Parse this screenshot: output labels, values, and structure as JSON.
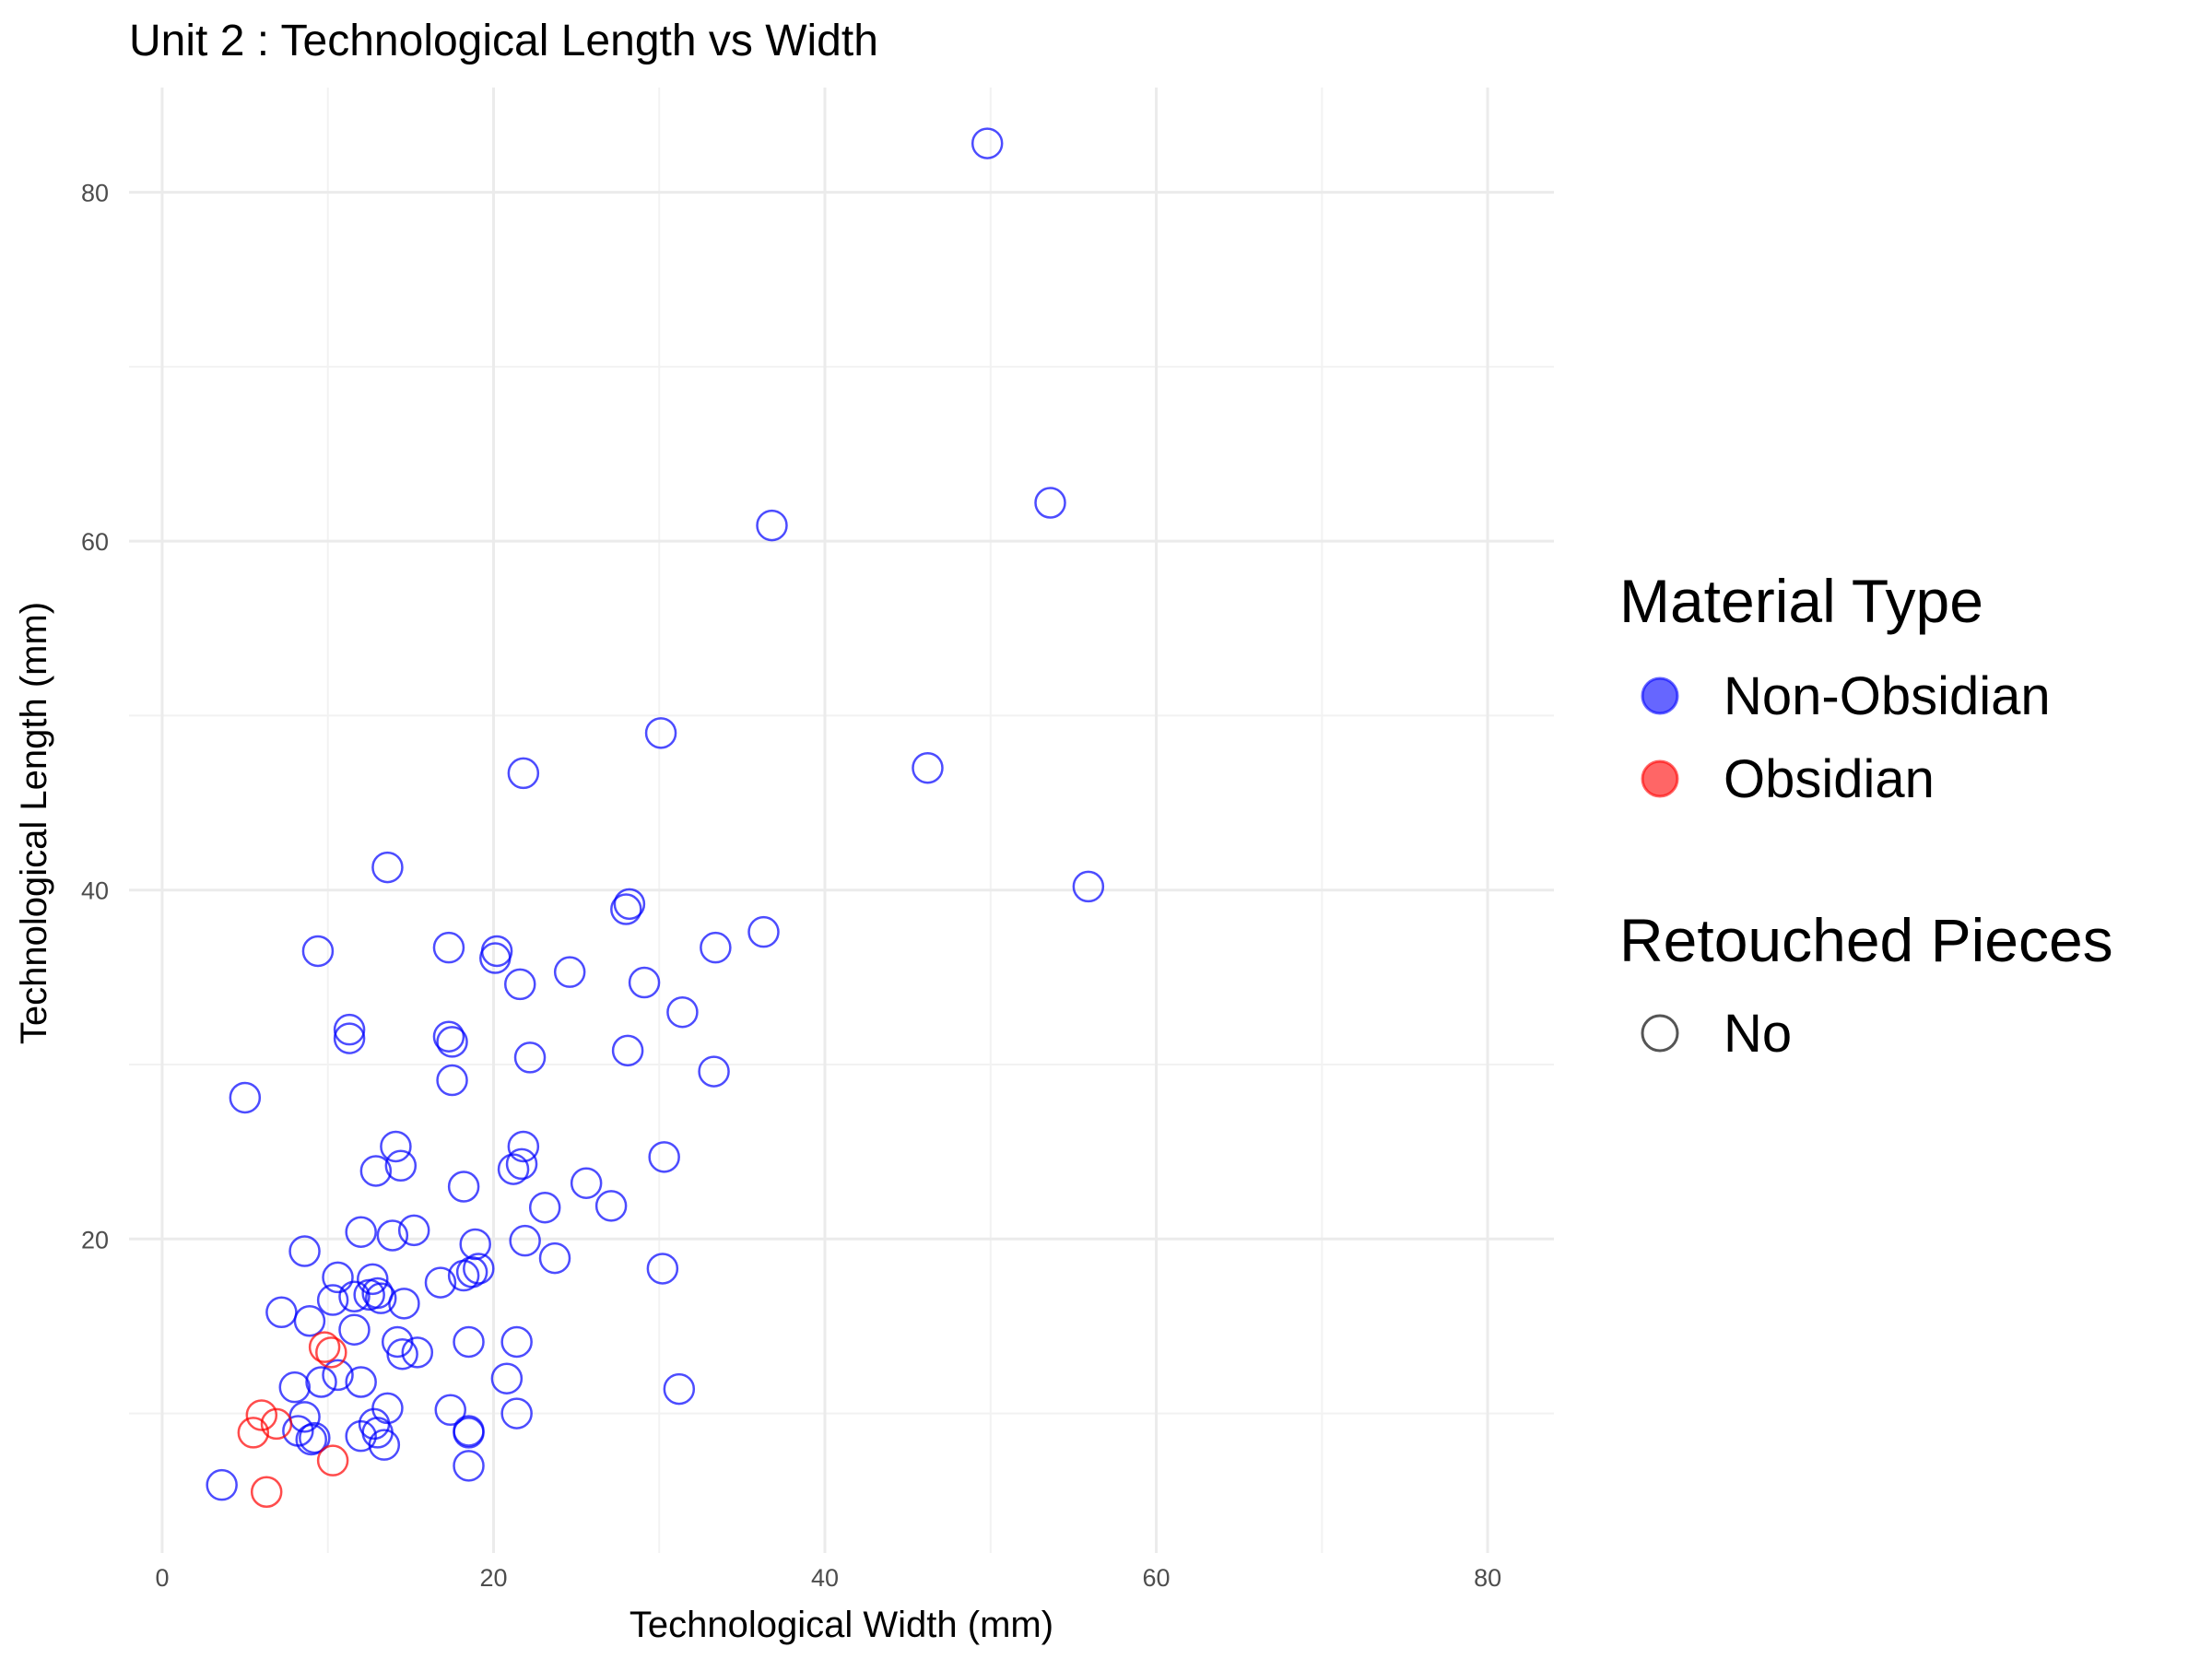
{
  "chart_data": {
    "type": "scatter",
    "title": "Unit 2 : Technological Length vs Width",
    "xlabel": "Technological Width (mm)",
    "ylabel": "Technological Length (mm)",
    "xlim": [
      -2,
      84
    ],
    "ylim": [
      2,
      86
    ],
    "x_ticks": [
      0,
      20,
      40,
      60,
      80
    ],
    "y_ticks": [
      20,
      40,
      60,
      80
    ],
    "x_tick_labels": [
      "0",
      "20",
      "40",
      "60",
      "80"
    ],
    "y_tick_labels": [
      "20",
      "40",
      "60",
      "80"
    ],
    "grid": true,
    "marker": "open-circle",
    "legend": {
      "placement": "right",
      "groups": [
        {
          "title": "Material Type",
          "entries": [
            {
              "label": "Non-Obsidian",
              "color": "#0000ff",
              "filled": true
            },
            {
              "label": "Obsidian",
              "color": "#ff0000",
              "filled": true
            }
          ]
        },
        {
          "title": "Retouched Pieces",
          "entries": [
            {
              "label": "No",
              "color": "#555555",
              "filled": false
            }
          ]
        }
      ]
    },
    "series": [
      {
        "name": "Non-Obsidian",
        "color": "#0000ff",
        "points": [
          [
            49.8,
            82.8
          ],
          [
            53.6,
            62.2
          ],
          [
            36.8,
            60.9
          ],
          [
            30.1,
            49.0
          ],
          [
            46.2,
            47.0
          ],
          [
            21.8,
            46.7
          ],
          [
            55.9,
            40.2
          ],
          [
            13.6,
            41.3
          ],
          [
            28.2,
            39.2
          ],
          [
            28.0,
            38.9
          ],
          [
            36.3,
            37.6
          ],
          [
            9.4,
            36.5
          ],
          [
            17.3,
            36.7
          ],
          [
            20.2,
            36.5
          ],
          [
            20.1,
            36.1
          ],
          [
            33.4,
            36.7
          ],
          [
            24.6,
            35.3
          ],
          [
            21.6,
            34.6
          ],
          [
            29.1,
            34.7
          ],
          [
            31.4,
            33.0
          ],
          [
            11.3,
            32.0
          ],
          [
            11.3,
            31.5
          ],
          [
            17.3,
            31.6
          ],
          [
            17.5,
            31.3
          ],
          [
            28.1,
            30.8
          ],
          [
            22.2,
            30.4
          ],
          [
            33.3,
            29.6
          ],
          [
            17.5,
            29.1
          ],
          [
            5.0,
            28.1
          ],
          [
            14.1,
            25.3
          ],
          [
            21.8,
            25.3
          ],
          [
            30.3,
            24.7
          ],
          [
            14.4,
            24.2
          ],
          [
            12.9,
            23.9
          ],
          [
            21.2,
            24.0
          ],
          [
            21.7,
            24.3
          ],
          [
            18.2,
            23.0
          ],
          [
            25.6,
            23.2
          ],
          [
            27.1,
            21.9
          ],
          [
            23.1,
            21.8
          ],
          [
            12.0,
            20.4
          ],
          [
            13.9,
            20.2
          ],
          [
            15.2,
            20.5
          ],
          [
            18.9,
            19.7
          ],
          [
            21.9,
            19.9
          ],
          [
            8.6,
            19.3
          ],
          [
            23.7,
            18.9
          ],
          [
            30.2,
            18.3
          ],
          [
            19.1,
            18.3
          ],
          [
            18.7,
            18.1
          ],
          [
            18.2,
            17.9
          ],
          [
            16.8,
            17.5
          ],
          [
            10.6,
            17.8
          ],
          [
            12.7,
            17.7
          ],
          [
            11.6,
            16.7
          ],
          [
            12.5,
            16.8
          ],
          [
            13.0,
            16.9
          ],
          [
            13.2,
            16.6
          ],
          [
            10.3,
            16.5
          ],
          [
            14.6,
            16.3
          ],
          [
            7.2,
            15.8
          ],
          [
            8.9,
            15.3
          ],
          [
            11.6,
            14.8
          ],
          [
            18.5,
            14.1
          ],
          [
            21.4,
            14.1
          ],
          [
            14.2,
            14.1
          ],
          [
            14.5,
            13.4
          ],
          [
            15.4,
            13.5
          ],
          [
            10.6,
            12.2
          ],
          [
            9.6,
            11.8
          ],
          [
            12.0,
            11.8
          ],
          [
            20.8,
            12.0
          ],
          [
            31.2,
            11.4
          ],
          [
            8.0,
            11.5
          ],
          [
            13.6,
            10.3
          ],
          [
            17.4,
            10.2
          ],
          [
            21.4,
            10.0
          ],
          [
            8.6,
            9.8
          ],
          [
            12.8,
            9.4
          ],
          [
            8.2,
            9.0
          ],
          [
            12.0,
            8.7
          ],
          [
            13.0,
            8.9
          ],
          [
            18.5,
            9.0
          ],
          [
            18.5,
            8.9
          ],
          [
            9.0,
            8.5
          ],
          [
            9.2,
            8.6
          ],
          [
            13.4,
            8.2
          ],
          [
            18.5,
            7.0
          ],
          [
            3.6,
            5.9
          ]
        ]
      },
      {
        "name": "Obsidian",
        "color": "#ff0000",
        "points": [
          [
            9.8,
            13.8
          ],
          [
            10.2,
            13.5
          ],
          [
            6.0,
            9.9
          ],
          [
            6.9,
            9.4
          ],
          [
            5.5,
            8.9
          ],
          [
            10.3,
            7.3
          ],
          [
            6.3,
            5.5
          ]
        ]
      }
    ]
  }
}
